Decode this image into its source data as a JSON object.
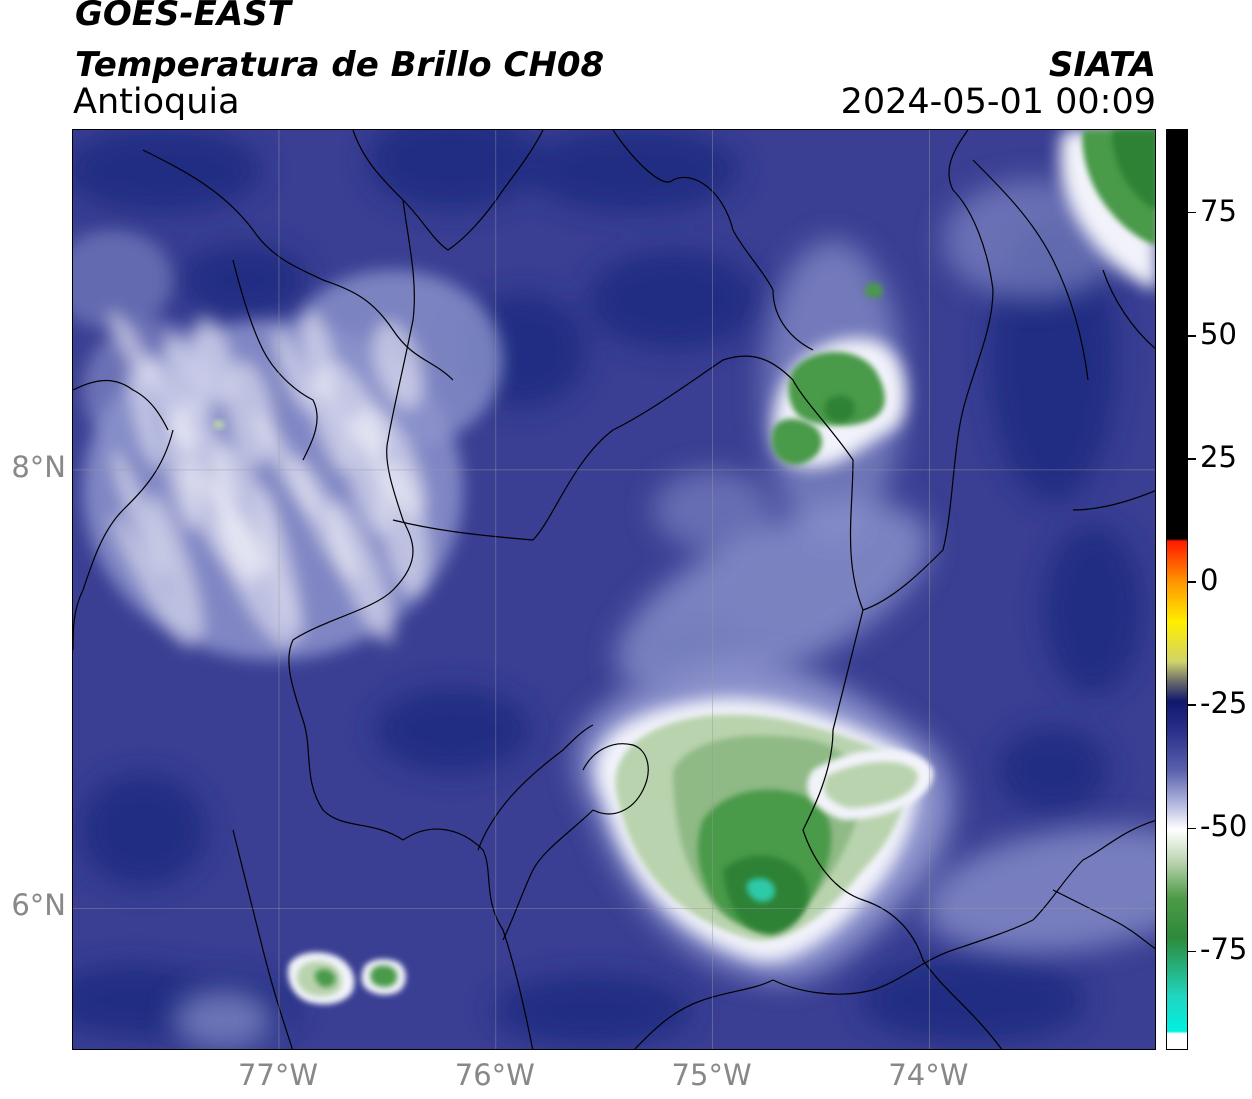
{
  "header": {
    "title_line1": "GOES-EAST",
    "title_line2": "Temperatura de Brillo CH08",
    "region": "Antioquia",
    "agency": "SIATA",
    "timestamp": "2024-05-01 00:09"
  },
  "map": {
    "lon_range": [
      -77.95,
      -72.95
    ],
    "lat_range": [
      5.35,
      9.55
    ],
    "lon_ticks": [
      {
        "value": -77,
        "label": "77°W"
      },
      {
        "value": -76,
        "label": "76°W"
      },
      {
        "value": -75,
        "label": "75°W"
      },
      {
        "value": -74,
        "label": "74°W"
      }
    ],
    "lat_ticks": [
      {
        "value": 8,
        "label": "8°N"
      },
      {
        "value": 6,
        "label": "6°N"
      }
    ],
    "grid": true,
    "colors": {
      "background_blue": "#3a3f93",
      "deep_blue": "#1f2a80",
      "light_blue": "#8c93cc",
      "white_cloud": "#f2f3fa",
      "pale_green": "#b9d3ae",
      "green": "#4a9a4a",
      "dark_green": "#2e8236",
      "cyan": "#2ec9a9"
    },
    "features": [
      {
        "name": "cloud-mass-antioquia-central",
        "lon": -74.9,
        "lat": 5.95,
        "temp_min": -78
      },
      {
        "name": "cloud-cell-north-east",
        "lon": -74.45,
        "lat": 7.9,
        "temp_min": -68
      },
      {
        "name": "cloud-cell-north-east-top",
        "lon": -73.05,
        "lat": 9.35,
        "temp_min": -68
      },
      {
        "name": "cloud-cell-south-west",
        "lon": -76.7,
        "lat": 5.55,
        "temp_min": -65
      },
      {
        "name": "cirrus-west",
        "lon": -77.3,
        "lat": 7.5,
        "temp_min": -55
      }
    ]
  },
  "colorbar": {
    "range": [
      -95,
      92
    ],
    "ticks": [
      {
        "value": 75,
        "label": "75"
      },
      {
        "value": 50,
        "label": "50"
      },
      {
        "value": 25,
        "label": "25"
      },
      {
        "value": 0,
        "label": "0"
      },
      {
        "value": -25,
        "label": "-25"
      },
      {
        "value": -50,
        "label": "-50"
      },
      {
        "value": -75,
        "label": "-75"
      }
    ],
    "stops": [
      {
        "value": 92,
        "color": "#000000"
      },
      {
        "value": 9,
        "color": "#000000"
      },
      {
        "value": 8.5,
        "color": "#ff1a00"
      },
      {
        "value": 0,
        "color": "#ff9900"
      },
      {
        "value": -8,
        "color": "#ffee00"
      },
      {
        "value": -16,
        "color": "#cfd36a"
      },
      {
        "value": -20,
        "color": "#6a6a6a"
      },
      {
        "value": -24,
        "color": "#10186e"
      },
      {
        "value": -30,
        "color": "#2a2f8a"
      },
      {
        "value": -38,
        "color": "#5a60ad"
      },
      {
        "value": -45,
        "color": "#b6bae0"
      },
      {
        "value": -50,
        "color": "#ffffff"
      },
      {
        "value": -56,
        "color": "#c3d8b8"
      },
      {
        "value": -64,
        "color": "#4c9b46"
      },
      {
        "value": -72,
        "color": "#2e8a3a"
      },
      {
        "value": -84,
        "color": "#1fd6c0"
      },
      {
        "value": -91,
        "color": "#00f0e0"
      },
      {
        "value": -91.5,
        "color": "#ffffff"
      },
      {
        "value": -95,
        "color": "#ffffff"
      }
    ]
  }
}
